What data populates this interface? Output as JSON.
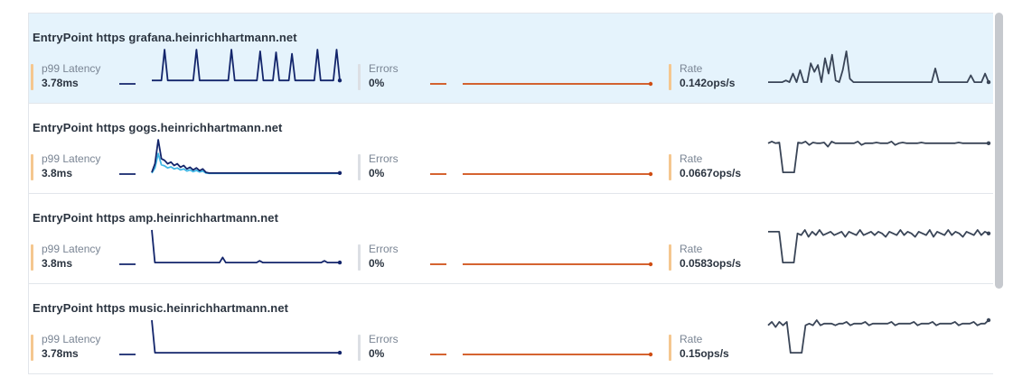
{
  "colors": {
    "latency_indicator": "#f5c78f",
    "errors_indicator": "#dcdfe4",
    "rate_indicator": "#f5c78f",
    "latency_line": "#13256b",
    "latency_secondary": "#41b8e6",
    "errors_line": "#cf4d13",
    "rate_line": "#3a4557",
    "selected_row_bg": "#e5f3fc"
  },
  "selected_index": 0,
  "entrypoints": [
    {
      "name": "EntryPoint https grafana.heinrichhartmann.net",
      "latency": {
        "label": "p99 Latency",
        "value": "3.78ms"
      },
      "errors": {
        "label": "Errors",
        "value": "0%"
      },
      "rate": {
        "label": "Rate",
        "value": "0.142ops/s"
      },
      "latency_series": [
        0.1,
        0.1,
        0.1,
        0.1,
        0.1,
        0.1,
        0.1,
        0.1,
        0.1,
        0.1,
        0.1,
        0.1,
        0.1,
        0.1,
        0.1,
        0.1,
        0.1,
        0.1,
        0.1,
        0.1,
        0.1,
        0.1,
        0.1,
        0.1,
        0.1,
        0.1,
        0.1,
        0.1,
        0.1,
        0.1,
        0.1,
        0.1,
        0.1,
        0.1,
        0.1,
        0.1,
        0.1,
        0.1,
        0.1,
        0.1,
        0.1,
        0.1,
        0.1,
        0.1,
        0.1,
        0.1,
        0.1,
        0.1,
        0.1,
        0.1,
        0.1,
        0.1,
        0.1,
        0.1,
        0.1,
        0.1,
        0.1,
        0.1,
        0.1,
        0.1
      ],
      "latency_spikes": [
        [
          0.06,
          1.0
        ],
        [
          0.24,
          1.0
        ],
        [
          0.42,
          1.0
        ],
        [
          0.58,
          0.95
        ],
        [
          0.66,
          0.92
        ],
        [
          0.74,
          0.88
        ],
        [
          0.88,
          1.0
        ],
        [
          0.99,
          1.0
        ]
      ],
      "rate_series": [
        0.05,
        0.05,
        0.05,
        0.05,
        0.05,
        0.1,
        0.05,
        0.3,
        0.05,
        0.4,
        0.05,
        0.05,
        0.6,
        0.35,
        0.55,
        0.05,
        0.75,
        0.3,
        0.85,
        0.1,
        0.05,
        0.4,
        0.95,
        0.15,
        0.05,
        0.05,
        0.05,
        0.05,
        0.05,
        0.05,
        0.05,
        0.05,
        0.05,
        0.05,
        0.05,
        0.05,
        0.05,
        0.05,
        0.05,
        0.05,
        0.05,
        0.05,
        0.05,
        0.05,
        0.05,
        0.05,
        0.05,
        0.45,
        0.05,
        0.05,
        0.05,
        0.05,
        0.05,
        0.05,
        0.05,
        0.05,
        0.05,
        0.25,
        0.05,
        0.05,
        0.05,
        0.3,
        0.05
      ]
    },
    {
      "name": "EntryPoint https gogs.heinrichhartmann.net",
      "latency": {
        "label": "p99 Latency",
        "value": "3.8ms"
      },
      "errors": {
        "label": "Errors",
        "value": "0%"
      },
      "rate": {
        "label": "Rate",
        "value": "0.0667ops/s"
      },
      "latency_series": [
        0.05,
        0.3,
        1.0,
        0.45,
        0.4,
        0.3,
        0.35,
        0.25,
        0.3,
        0.2,
        0.25,
        0.15,
        0.2,
        0.12,
        0.18,
        0.1,
        0.15,
        0.05,
        0.03,
        0.03,
        0.03,
        0.03,
        0.03,
        0.03,
        0.03,
        0.03,
        0.03,
        0.03,
        0.03,
        0.03,
        0.03,
        0.03,
        0.03,
        0.03,
        0.03,
        0.03,
        0.03,
        0.03,
        0.03,
        0.03,
        0.03,
        0.03,
        0.03,
        0.03,
        0.03,
        0.03,
        0.03,
        0.03,
        0.03,
        0.03,
        0.03,
        0.03,
        0.03,
        0.03,
        0.03,
        0.03,
        0.03,
        0.03,
        0.03,
        0.03
      ],
      "latency_spikes": [],
      "rate_series": [
        0.9,
        0.95,
        0.9,
        0.92,
        0.05,
        0.05,
        0.05,
        0.05,
        0.92,
        0.9,
        0.95,
        0.85,
        0.92,
        0.9,
        0.9,
        0.92,
        0.8,
        0.95,
        0.9,
        0.9,
        0.9,
        0.9,
        0.9,
        0.9,
        0.95,
        0.85,
        0.9,
        0.9,
        0.9,
        0.92,
        0.9,
        0.9,
        0.9,
        0.95,
        0.85,
        0.9,
        0.92,
        0.9,
        0.9,
        0.9,
        0.9,
        0.92,
        0.9,
        0.9,
        0.9,
        0.9,
        0.9,
        0.9,
        0.9,
        0.9,
        0.9,
        0.92,
        0.9,
        0.9,
        0.9,
        0.9,
        0.9,
        0.9,
        0.9,
        0.9
      ],
      "latency_secondary": true
    },
    {
      "name": "EntryPoint https amp.heinrichhartmann.net",
      "latency": {
        "label": "p99 Latency",
        "value": "3.8ms"
      },
      "errors": {
        "label": "Errors",
        "value": "0%"
      },
      "rate": {
        "label": "Rate",
        "value": "0.0583ops/s"
      },
      "latency_series": [
        1.0,
        0.05,
        0.05,
        0.05,
        0.05,
        0.05,
        0.05,
        0.05,
        0.05,
        0.05,
        0.05,
        0.05,
        0.05,
        0.05,
        0.05,
        0.05,
        0.05,
        0.05,
        0.05,
        0.05,
        0.05,
        0.05,
        0.05,
        0.2,
        0.05,
        0.05,
        0.05,
        0.05,
        0.05,
        0.05,
        0.05,
        0.05,
        0.05,
        0.05,
        0.05,
        0.1,
        0.05,
        0.05,
        0.05,
        0.05,
        0.05,
        0.05,
        0.05,
        0.05,
        0.05,
        0.05,
        0.05,
        0.05,
        0.05,
        0.05,
        0.05,
        0.05,
        0.05,
        0.05,
        0.05,
        0.05,
        0.1,
        0.05,
        0.05,
        0.05,
        0.05,
        0.05
      ],
      "latency_spikes": [],
      "rate_series": [
        0.95,
        0.95,
        0.95,
        0.95,
        0.05,
        0.05,
        0.05,
        0.05,
        0.9,
        0.85,
        1.0,
        0.8,
        0.95,
        0.85,
        1.0,
        0.85,
        0.9,
        0.95,
        0.85,
        0.9,
        0.95,
        0.8,
        0.95,
        0.9,
        0.85,
        1.0,
        0.85,
        0.9,
        0.95,
        0.85,
        0.95,
        0.9,
        0.8,
        0.95,
        0.9,
        0.85,
        1.0,
        0.85,
        0.95,
        0.9,
        0.8,
        0.95,
        0.9,
        0.85,
        1.0,
        0.8,
        0.95,
        0.9,
        0.85,
        1.0,
        0.85,
        0.95,
        0.9,
        0.8,
        0.95,
        0.9,
        0.85,
        1.0,
        0.85,
        0.95,
        0.9
      ]
    },
    {
      "name": "EntryPoint https music.heinrichhartmann.net",
      "latency": {
        "label": "p99 Latency",
        "value": "3.78ms"
      },
      "errors": {
        "label": "Errors",
        "value": "0%"
      },
      "rate": {
        "label": "Rate",
        "value": "0.15ops/s"
      },
      "latency_series": [
        1.0,
        0.05,
        0.05,
        0.05,
        0.05,
        0.05,
        0.05,
        0.05,
        0.05,
        0.05,
        0.05,
        0.05,
        0.05,
        0.05,
        0.05,
        0.05,
        0.05,
        0.05,
        0.05,
        0.05,
        0.05,
        0.05,
        0.05,
        0.05,
        0.05,
        0.05,
        0.05,
        0.05,
        0.05,
        0.05,
        0.05,
        0.05,
        0.05,
        0.05,
        0.05,
        0.05,
        0.05,
        0.05,
        0.05,
        0.05,
        0.05,
        0.05,
        0.05,
        0.05,
        0.05,
        0.05,
        0.05,
        0.05,
        0.05,
        0.05,
        0.05,
        0.05,
        0.05,
        0.05,
        0.05,
        0.05,
        0.05,
        0.05,
        0.05,
        0.05
      ],
      "latency_spikes": [],
      "rate_series": [
        0.85,
        0.95,
        0.8,
        0.95,
        0.85,
        0.95,
        0.05,
        0.05,
        0.05,
        0.05,
        0.85,
        0.9,
        0.85,
        1.0,
        0.85,
        0.9,
        0.9,
        0.9,
        0.85,
        0.9,
        0.9,
        0.95,
        0.85,
        0.9,
        0.9,
        0.9,
        0.95,
        0.85,
        0.9,
        0.9,
        0.9,
        0.9,
        0.9,
        0.95,
        0.85,
        0.9,
        0.9,
        0.9,
        0.9,
        0.95,
        0.85,
        0.9,
        0.9,
        0.9,
        0.95,
        0.85,
        0.9,
        0.9,
        0.9,
        0.9,
        0.95,
        0.85,
        0.9,
        0.9,
        0.9,
        0.95,
        0.85,
        0.9,
        0.9,
        1.0
      ]
    }
  ]
}
